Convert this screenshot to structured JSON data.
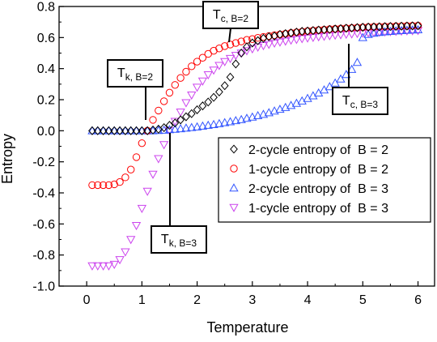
{
  "chart_data": {
    "type": "scatter",
    "xlabel": "Temperature",
    "ylabel": "Entropy",
    "xlim": [
      -0.5,
      6.3
    ],
    "ylim": [
      -1.0,
      0.8
    ],
    "xticks": [
      0,
      1,
      2,
      3,
      4,
      5,
      6
    ],
    "yticks": [
      -1.0,
      -0.8,
      -0.6,
      -0.4,
      -0.2,
      0.0,
      0.2,
      0.4,
      0.6,
      0.8
    ],
    "xtick_labels": [
      "0",
      "1",
      "2",
      "3",
      "4",
      "5",
      "6"
    ],
    "ytick_labels": [
      "-1.0",
      "-0.8",
      "-0.6",
      "-0.4",
      "-0.2",
      "0.0",
      "0.2",
      "0.4",
      "0.6",
      "0.8"
    ],
    "grid": false,
    "legend_position": "right",
    "series": [
      {
        "name": "2-cycle entropy of  B = 2",
        "marker": "diamond",
        "color": "#000000",
        "points": [
          [
            0.1,
            0.0
          ],
          [
            0.2,
            0.0
          ],
          [
            0.3,
            0.0
          ],
          [
            0.4,
            0.0
          ],
          [
            0.5,
            0.0
          ],
          [
            0.6,
            0.0
          ],
          [
            0.7,
            0.0
          ],
          [
            0.8,
            0.0
          ],
          [
            0.9,
            0.0
          ],
          [
            1.0,
            0.0
          ],
          [
            1.1,
            0.0
          ],
          [
            1.2,
            0.005
          ],
          [
            1.3,
            0.01
          ],
          [
            1.4,
            0.02
          ],
          [
            1.5,
            0.035
          ],
          [
            1.6,
            0.05
          ],
          [
            1.7,
            0.07
          ],
          [
            1.8,
            0.09
          ],
          [
            1.9,
            0.11
          ],
          [
            2.0,
            0.135
          ],
          [
            2.1,
            0.16
          ],
          [
            2.2,
            0.185
          ],
          [
            2.3,
            0.215
          ],
          [
            2.4,
            0.25
          ],
          [
            2.5,
            0.29
          ],
          [
            2.6,
            0.345
          ],
          [
            2.7,
            0.43
          ],
          [
            2.8,
            0.5
          ],
          [
            2.9,
            0.54
          ],
          [
            3.0,
            0.565
          ],
          [
            3.1,
            0.58
          ],
          [
            3.2,
            0.595
          ],
          [
            3.3,
            0.605
          ],
          [
            3.4,
            0.61
          ],
          [
            3.5,
            0.62
          ],
          [
            3.6,
            0.625
          ],
          [
            3.7,
            0.63
          ],
          [
            3.8,
            0.635
          ],
          [
            3.9,
            0.64
          ],
          [
            4.0,
            0.642
          ],
          [
            4.1,
            0.645
          ],
          [
            4.2,
            0.648
          ],
          [
            4.3,
            0.65
          ],
          [
            4.4,
            0.652
          ],
          [
            4.5,
            0.655
          ],
          [
            4.6,
            0.657
          ],
          [
            4.7,
            0.66
          ],
          [
            4.8,
            0.662
          ],
          [
            4.9,
            0.664
          ],
          [
            5.0,
            0.666
          ],
          [
            5.1,
            0.667
          ],
          [
            5.2,
            0.668
          ],
          [
            5.3,
            0.669
          ],
          [
            5.4,
            0.67
          ],
          [
            5.5,
            0.671
          ],
          [
            5.6,
            0.672
          ],
          [
            5.7,
            0.673
          ],
          [
            5.8,
            0.674
          ],
          [
            5.9,
            0.675
          ],
          [
            6.0,
            0.676
          ]
        ]
      },
      {
        "name": "1-cycle entropy of  B = 2",
        "marker": "circle",
        "color": "#ff0000",
        "points": [
          [
            0.1,
            -0.35
          ],
          [
            0.2,
            -0.35
          ],
          [
            0.3,
            -0.35
          ],
          [
            0.4,
            -0.35
          ],
          [
            0.5,
            -0.345
          ],
          [
            0.6,
            -0.33
          ],
          [
            0.7,
            -0.3
          ],
          [
            0.8,
            -0.25
          ],
          [
            0.9,
            -0.17
          ],
          [
            1.0,
            -0.08
          ],
          [
            1.1,
            0.0
          ],
          [
            1.2,
            0.07
          ],
          [
            1.3,
            0.13
          ],
          [
            1.4,
            0.19
          ],
          [
            1.5,
            0.245
          ],
          [
            1.6,
            0.295
          ],
          [
            1.7,
            0.34
          ],
          [
            1.8,
            0.38
          ],
          [
            1.9,
            0.415
          ],
          [
            2.0,
            0.445
          ],
          [
            2.1,
            0.47
          ],
          [
            2.2,
            0.495
          ],
          [
            2.3,
            0.515
          ],
          [
            2.4,
            0.53
          ],
          [
            2.5,
            0.545
          ],
          [
            2.6,
            0.555
          ],
          [
            2.7,
            0.565
          ],
          [
            2.8,
            0.575
          ],
          [
            2.9,
            0.585
          ],
          [
            3.0,
            0.59
          ],
          [
            3.1,
            0.598
          ],
          [
            3.2,
            0.604
          ],
          [
            3.3,
            0.61
          ],
          [
            3.4,
            0.615
          ],
          [
            3.5,
            0.62
          ],
          [
            3.6,
            0.625
          ],
          [
            3.7,
            0.63
          ],
          [
            3.8,
            0.634
          ],
          [
            3.9,
            0.638
          ],
          [
            4.0,
            0.642
          ],
          [
            4.1,
            0.645
          ],
          [
            4.2,
            0.648
          ],
          [
            4.3,
            0.651
          ],
          [
            4.4,
            0.654
          ],
          [
            4.5,
            0.656
          ],
          [
            4.6,
            0.658
          ],
          [
            4.7,
            0.66
          ],
          [
            4.8,
            0.662
          ],
          [
            4.9,
            0.664
          ],
          [
            5.0,
            0.666
          ],
          [
            5.1,
            0.668
          ],
          [
            5.2,
            0.669
          ],
          [
            5.3,
            0.67
          ],
          [
            5.4,
            0.671
          ],
          [
            5.5,
            0.672
          ],
          [
            5.6,
            0.673
          ],
          [
            5.7,
            0.674
          ],
          [
            5.8,
            0.675
          ],
          [
            5.9,
            0.676
          ],
          [
            6.0,
            0.677
          ]
        ]
      },
      {
        "name": "2-cycle entropy of  B = 3",
        "marker": "triangle-up",
        "color": "#3355ff",
        "points": [
          [
            0.1,
            0.0
          ],
          [
            0.2,
            0.0
          ],
          [
            0.3,
            0.0
          ],
          [
            0.4,
            0.0
          ],
          [
            0.5,
            0.0
          ],
          [
            0.6,
            0.0
          ],
          [
            0.7,
            0.0
          ],
          [
            0.8,
            0.0
          ],
          [
            0.9,
            0.0
          ],
          [
            1.0,
            0.0
          ],
          [
            1.1,
            0.0
          ],
          [
            1.2,
            0.0
          ],
          [
            1.3,
            0.002
          ],
          [
            1.4,
            0.004
          ],
          [
            1.5,
            0.007
          ],
          [
            1.6,
            0.01
          ],
          [
            1.7,
            0.013
          ],
          [
            1.8,
            0.017
          ],
          [
            1.9,
            0.021
          ],
          [
            2.0,
            0.025
          ],
          [
            2.1,
            0.03
          ],
          [
            2.2,
            0.035
          ],
          [
            2.3,
            0.04
          ],
          [
            2.4,
            0.046
          ],
          [
            2.5,
            0.052
          ],
          [
            2.6,
            0.058
          ],
          [
            2.7,
            0.065
          ],
          [
            2.8,
            0.072
          ],
          [
            2.9,
            0.08
          ],
          [
            3.0,
            0.088
          ],
          [
            3.1,
            0.097
          ],
          [
            3.2,
            0.106
          ],
          [
            3.3,
            0.116
          ],
          [
            3.4,
            0.127
          ],
          [
            3.5,
            0.138
          ],
          [
            3.6,
            0.15
          ],
          [
            3.7,
            0.163
          ],
          [
            3.8,
            0.177
          ],
          [
            3.9,
            0.192
          ],
          [
            4.0,
            0.208
          ],
          [
            4.1,
            0.225
          ],
          [
            4.2,
            0.243
          ],
          [
            4.3,
            0.263
          ],
          [
            4.4,
            0.284
          ],
          [
            4.5,
            0.307
          ],
          [
            4.6,
            0.333
          ],
          [
            4.7,
            0.362
          ],
          [
            4.8,
            0.395
          ],
          [
            4.9,
            0.44
          ],
          [
            5.0,
            0.6
          ],
          [
            5.1,
            0.62
          ],
          [
            5.2,
            0.628
          ],
          [
            5.3,
            0.633
          ],
          [
            5.4,
            0.637
          ],
          [
            5.5,
            0.64
          ],
          [
            5.6,
            0.643
          ],
          [
            5.7,
            0.645
          ],
          [
            5.8,
            0.647
          ],
          [
            5.9,
            0.649
          ],
          [
            6.0,
            0.65
          ]
        ]
      },
      {
        "name": "1-cycle entropy of  B = 3",
        "marker": "triangle-down",
        "color": "#cc44ee",
        "points": [
          [
            0.1,
            -0.87
          ],
          [
            0.2,
            -0.87
          ],
          [
            0.3,
            -0.87
          ],
          [
            0.4,
            -0.87
          ],
          [
            0.5,
            -0.86
          ],
          [
            0.6,
            -0.83
          ],
          [
            0.7,
            -0.78
          ],
          [
            0.8,
            -0.7
          ],
          [
            0.9,
            -0.61
          ],
          [
            1.0,
            -0.5
          ],
          [
            1.1,
            -0.39
          ],
          [
            1.2,
            -0.28
          ],
          [
            1.3,
            -0.18
          ],
          [
            1.4,
            -0.09
          ],
          [
            1.5,
            0.0
          ],
          [
            1.6,
            0.06
          ],
          [
            1.7,
            0.12
          ],
          [
            1.8,
            0.18
          ],
          [
            1.9,
            0.23
          ],
          [
            2.0,
            0.28
          ],
          [
            2.1,
            0.32
          ],
          [
            2.2,
            0.36
          ],
          [
            2.3,
            0.39
          ],
          [
            2.4,
            0.42
          ],
          [
            2.5,
            0.445
          ],
          [
            2.6,
            0.465
          ],
          [
            2.7,
            0.485
          ],
          [
            2.8,
            0.5
          ],
          [
            2.9,
            0.515
          ],
          [
            3.0,
            0.527
          ],
          [
            3.1,
            0.538
          ],
          [
            3.2,
            0.548
          ],
          [
            3.3,
            0.556
          ],
          [
            3.4,
            0.564
          ],
          [
            3.5,
            0.571
          ],
          [
            3.6,
            0.577
          ],
          [
            3.7,
            0.583
          ],
          [
            3.8,
            0.588
          ],
          [
            3.9,
            0.593
          ],
          [
            4.0,
            0.597
          ],
          [
            4.1,
            0.601
          ],
          [
            4.2,
            0.605
          ],
          [
            4.3,
            0.608
          ],
          [
            4.4,
            0.612
          ],
          [
            4.5,
            0.615
          ],
          [
            4.6,
            0.618
          ],
          [
            4.7,
            0.621
          ],
          [
            4.8,
            0.623
          ],
          [
            4.9,
            0.626
          ],
          [
            5.0,
            0.628
          ],
          [
            5.1,
            0.63
          ],
          [
            5.2,
            0.632
          ],
          [
            5.3,
            0.634
          ],
          [
            5.4,
            0.636
          ],
          [
            5.5,
            0.638
          ],
          [
            5.6,
            0.64
          ],
          [
            5.7,
            0.641
          ],
          [
            5.8,
            0.643
          ],
          [
            5.9,
            0.644
          ],
          [
            6.0,
            0.645
          ]
        ]
      }
    ],
    "annotations": [
      {
        "main": "T",
        "sub": "c, B=2",
        "target": [
          2.6,
          0.58
        ]
      },
      {
        "main": "T",
        "sub": "k, B=2",
        "target": [
          1.1,
          0.0
        ]
      },
      {
        "main": "T",
        "sub": "c, B=3",
        "target": [
          4.9,
          0.57
        ]
      },
      {
        "main": "T",
        "sub": "k, B=3",
        "target": [
          1.55,
          0.0
        ]
      }
    ]
  }
}
